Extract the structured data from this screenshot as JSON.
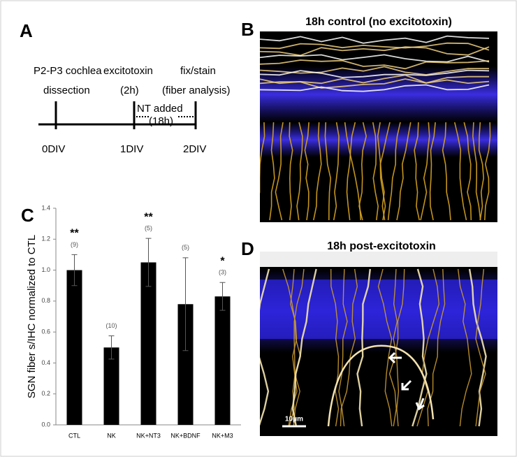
{
  "panel_labels": [
    "A",
    "B",
    "C",
    "D"
  ],
  "timeline": {
    "events": [
      {
        "lines": [
          "P2-P3 cochlea",
          "dissection"
        ],
        "day": "0DIV"
      },
      {
        "lines": [
          "excitotoxin",
          "(2h)"
        ],
        "day": "1DIV"
      },
      {
        "lines": [
          "fix/stain",
          "(fiber analysis)"
        ],
        "day": "2DIV"
      }
    ],
    "nt_added": "NT added",
    "duration": "(18h)"
  },
  "chart_data": {
    "type": "bar",
    "ylabel": "SGN fiber s/IHC normalized to CTL",
    "categories": [
      "CTL",
      "NK",
      "NK+NT3",
      "NK+BDNF",
      "NK+M3"
    ],
    "values": [
      1.0,
      0.5,
      1.05,
      0.78,
      0.83
    ],
    "errors": [
      0.1,
      0.075,
      0.155,
      0.3,
      0.09
    ],
    "n_labels": [
      "(9)",
      "(10)",
      "(5)",
      "(5)",
      "(3)"
    ],
    "significance": [
      "**",
      null,
      "**",
      null,
      "*"
    ],
    "color": "#000000",
    "ylim": [
      0,
      1.4
    ],
    "yticks": [
      {
        "value": 0,
        "label": "0.0"
      },
      {
        "value": 0.2,
        "label": "0.2"
      },
      {
        "value": 0.4,
        "label": "0.4"
      },
      {
        "value": 0.6,
        "label": "0.6"
      },
      {
        "value": 0.8,
        "label": "0.8"
      },
      {
        "value": 1.0,
        "label": "1.0"
      },
      {
        "value": 1.2,
        "label": "1.2"
      },
      {
        "value": 1.4,
        "label": "1.4"
      }
    ]
  },
  "images": [
    {
      "title": "18h control (no excitotoxin)"
    },
    {
      "title": "18h post-excitotoxin",
      "scale_bar": "10μm"
    }
  ]
}
